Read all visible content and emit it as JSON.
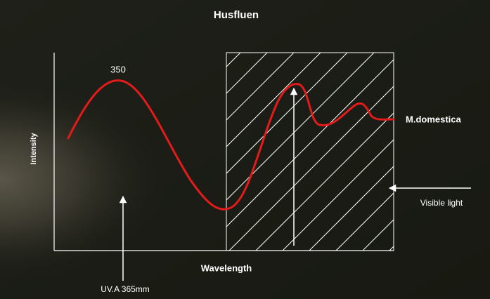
{
  "title": "Husfluen",
  "y_axis_label": "Intensity",
  "x_axis_label": "Wavelength",
  "peak_label": "350",
  "series_label": "M.domestica",
  "annotations": [
    "Visible light",
    "UV.A 365mm"
  ]
}
